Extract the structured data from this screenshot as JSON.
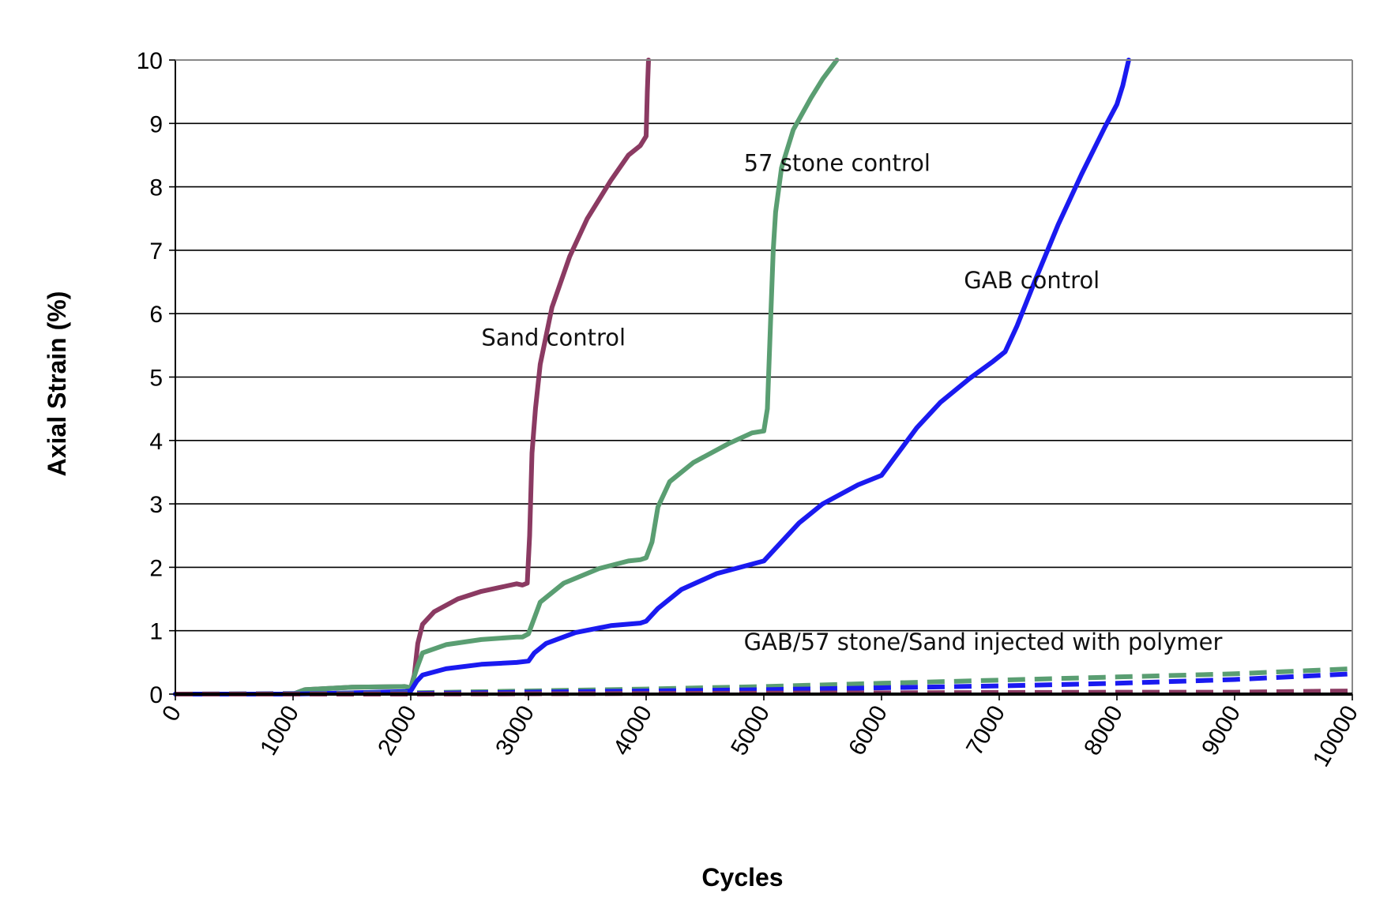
{
  "chart_data": {
    "type": "line",
    "title": "",
    "xlabel": "Cycles",
    "ylabel": "Axial Strain (%)",
    "xlim": [
      0,
      10000
    ],
    "ylim": [
      0,
      10
    ],
    "x_ticks": [
      0,
      1000,
      2000,
      3000,
      4000,
      5000,
      6000,
      7000,
      8000,
      9000,
      10000
    ],
    "y_ticks": [
      0,
      1,
      2,
      3,
      4,
      5,
      6,
      7,
      8,
      9,
      10
    ],
    "grid": "horizontal",
    "legend": "none",
    "annotations": [
      {
        "text": "Sand control",
        "x": 2600,
        "y": 5.5
      },
      {
        "text": "57 stone control",
        "x": 4830,
        "y": 8.25
      },
      {
        "text": "GAB control",
        "x": 6700,
        "y": 6.4
      },
      {
        "text": "GAB/57 stone/Sand injected with polymer",
        "x": 4830,
        "y": 0.7
      }
    ],
    "series": [
      {
        "color": "#8b3a62",
        "style": "solid",
        "points": [
          [
            0,
            0
          ],
          [
            1000,
            0
          ],
          [
            1100,
            0.07
          ],
          [
            1500,
            0.11
          ],
          [
            1950,
            0.12
          ],
          [
            2000,
            0.1
          ],
          [
            2030,
            0.3
          ],
          [
            2060,
            0.8
          ],
          [
            2100,
            1.1
          ],
          [
            2200,
            1.3
          ],
          [
            2400,
            1.5
          ],
          [
            2600,
            1.62
          ],
          [
            2800,
            1.7
          ],
          [
            2900,
            1.74
          ],
          [
            2950,
            1.72
          ],
          [
            2990,
            1.75
          ],
          [
            3010,
            2.5
          ],
          [
            3030,
            3.8
          ],
          [
            3060,
            4.5
          ],
          [
            3100,
            5.2
          ],
          [
            3200,
            6.1
          ],
          [
            3350,
            6.9
          ],
          [
            3500,
            7.5
          ],
          [
            3700,
            8.1
          ],
          [
            3850,
            8.5
          ],
          [
            3950,
            8.65
          ],
          [
            4000,
            8.8
          ],
          [
            4010,
            9.5
          ],
          [
            4020,
            10
          ]
        ]
      },
      {
        "color": "#5a9e72",
        "style": "solid",
        "points": [
          [
            0,
            0
          ],
          [
            1000,
            0
          ],
          [
            1100,
            0.07
          ],
          [
            1500,
            0.11
          ],
          [
            1950,
            0.12
          ],
          [
            2000,
            0.1
          ],
          [
            2050,
            0.4
          ],
          [
            2100,
            0.65
          ],
          [
            2300,
            0.78
          ],
          [
            2600,
            0.86
          ],
          [
            2900,
            0.9
          ],
          [
            2950,
            0.9
          ],
          [
            3000,
            0.95
          ],
          [
            3050,
            1.2
          ],
          [
            3100,
            1.45
          ],
          [
            3300,
            1.75
          ],
          [
            3600,
            1.98
          ],
          [
            3850,
            2.1
          ],
          [
            3950,
            2.12
          ],
          [
            4000,
            2.15
          ],
          [
            4050,
            2.4
          ],
          [
            4100,
            2.95
          ],
          [
            4200,
            3.35
          ],
          [
            4400,
            3.65
          ],
          [
            4700,
            3.95
          ],
          [
            4900,
            4.12
          ],
          [
            5000,
            4.15
          ],
          [
            5030,
            4.5
          ],
          [
            5060,
            6.0
          ],
          [
            5080,
            7.0
          ],
          [
            5100,
            7.6
          ],
          [
            5150,
            8.3
          ],
          [
            5250,
            8.9
          ],
          [
            5400,
            9.4
          ],
          [
            5500,
            9.7
          ],
          [
            5620,
            10
          ]
        ]
      },
      {
        "color": "#1a1af0",
        "style": "solid",
        "points": [
          [
            0,
            0
          ],
          [
            1000,
            0
          ],
          [
            1500,
            0.02
          ],
          [
            1950,
            0.04
          ],
          [
            2000,
            0.05
          ],
          [
            2050,
            0.2
          ],
          [
            2100,
            0.3
          ],
          [
            2300,
            0.4
          ],
          [
            2600,
            0.47
          ],
          [
            2900,
            0.5
          ],
          [
            3000,
            0.52
          ],
          [
            3050,
            0.65
          ],
          [
            3150,
            0.8
          ],
          [
            3400,
            0.97
          ],
          [
            3700,
            1.08
          ],
          [
            3950,
            1.12
          ],
          [
            4000,
            1.15
          ],
          [
            4100,
            1.35
          ],
          [
            4300,
            1.65
          ],
          [
            4600,
            1.9
          ],
          [
            4900,
            2.05
          ],
          [
            5000,
            2.1
          ],
          [
            5100,
            2.3
          ],
          [
            5300,
            2.7
          ],
          [
            5500,
            3.0
          ],
          [
            5800,
            3.3
          ],
          [
            6000,
            3.45
          ],
          [
            6100,
            3.7
          ],
          [
            6300,
            4.2
          ],
          [
            6500,
            4.6
          ],
          [
            6750,
            4.98
          ],
          [
            6950,
            5.25
          ],
          [
            7050,
            5.4
          ],
          [
            7150,
            5.8
          ],
          [
            7300,
            6.5
          ],
          [
            7500,
            7.4
          ],
          [
            7700,
            8.2
          ],
          [
            7900,
            8.95
          ],
          [
            8000,
            9.3
          ],
          [
            8050,
            9.6
          ],
          [
            8100,
            10
          ]
        ]
      },
      {
        "color": "#5a9e72",
        "style": "dashed",
        "points": [
          [
            0,
            0
          ],
          [
            2000,
            0.02
          ],
          [
            3000,
            0.05
          ],
          [
            4000,
            0.08
          ],
          [
            5000,
            0.12
          ],
          [
            6000,
            0.17
          ],
          [
            7000,
            0.22
          ],
          [
            8000,
            0.27
          ],
          [
            9000,
            0.32
          ],
          [
            10000,
            0.4
          ]
        ]
      },
      {
        "color": "#1a1af0",
        "style": "dashed",
        "points": [
          [
            0,
            0
          ],
          [
            2000,
            0.01
          ],
          [
            3000,
            0.03
          ],
          [
            4000,
            0.05
          ],
          [
            5000,
            0.07
          ],
          [
            6000,
            0.1
          ],
          [
            7000,
            0.13
          ],
          [
            8000,
            0.17
          ],
          [
            9000,
            0.23
          ],
          [
            10000,
            0.32
          ]
        ]
      },
      {
        "color": "#8b3a62",
        "style": "dashed",
        "points": [
          [
            0,
            0
          ],
          [
            2000,
            0
          ],
          [
            4000,
            0.01
          ],
          [
            6000,
            0.02
          ],
          [
            8000,
            0.03
          ],
          [
            9000,
            0.03
          ],
          [
            10000,
            0.05
          ]
        ]
      }
    ]
  }
}
